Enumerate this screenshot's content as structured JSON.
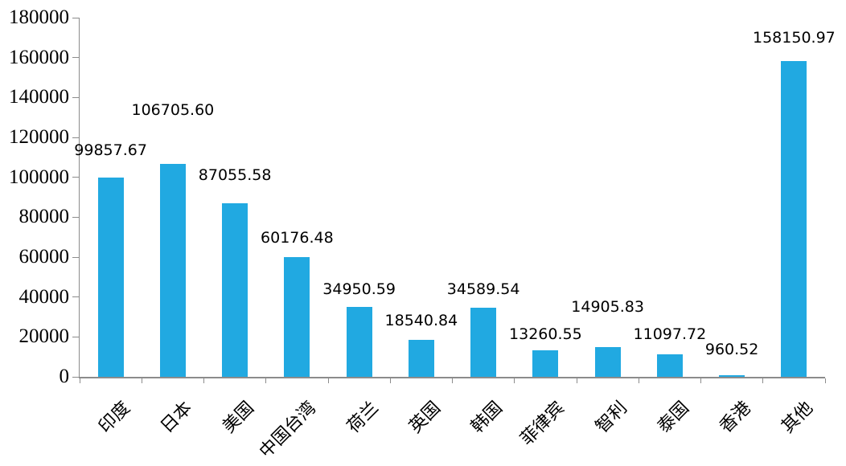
{
  "chart_data": {
    "type": "bar",
    "title": "",
    "xlabel": "",
    "ylabel": "",
    "categories": [
      "印度",
      "日本",
      "美国",
      "中国台湾",
      "荷兰",
      "英国",
      "韩国",
      "菲律宾",
      "智利",
      "泰国",
      "香港",
      "其他"
    ],
    "values": [
      99857.67,
      106705.6,
      87055.58,
      60176.48,
      34950.59,
      18540.84,
      34589.54,
      13260.55,
      14905.83,
      11097.72,
      960.52,
      158150.97
    ],
    "value_labels": [
      "99857.67",
      "106705.60",
      "87055.58",
      "60176.48",
      "34950.59",
      "18540.84",
      "34589.54",
      "13260.55",
      "14905.83",
      "11097.72",
      "960.52",
      "158150.97"
    ],
    "ylim": [
      0,
      180000
    ],
    "ytick_step": 20000,
    "ytick_labels": [
      "0",
      "20000",
      "40000",
      "60000",
      "80000",
      "100000",
      "120000",
      "140000",
      "160000",
      "180000"
    ],
    "grid": "off",
    "legend": "none",
    "bar_color": "#21A9E1",
    "axis_color": "#8C8C8C",
    "text_color": "#000000",
    "background_color": "#FFFFFF"
  }
}
